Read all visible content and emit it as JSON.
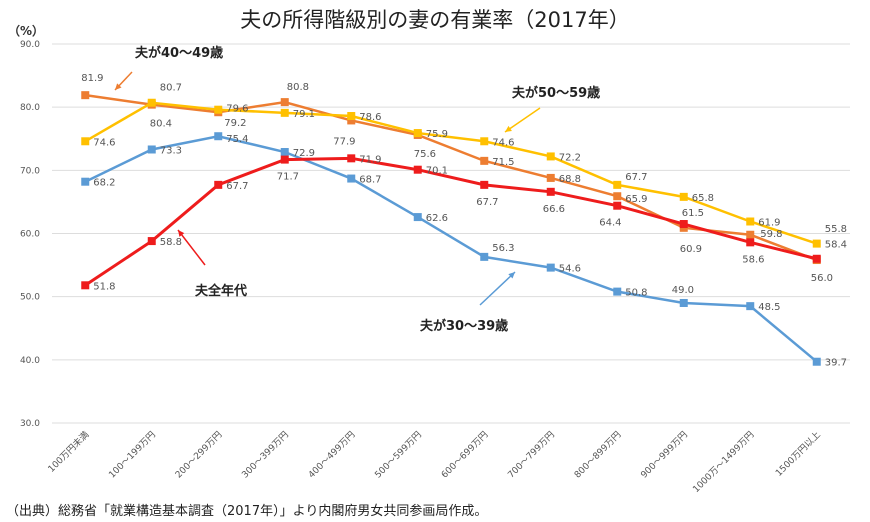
{
  "chart_data": {
    "type": "line",
    "title": "夫の所得階級別の妻の有業率（2017年）",
    "ylabel": "（%）",
    "ylim": [
      30,
      90
    ],
    "yticks": [
      "30.0",
      "40.0",
      "50.0",
      "60.0",
      "70.0",
      "80.0",
      "90.0"
    ],
    "grid": true,
    "categories": [
      "100万円未満",
      "100～199万円",
      "200～299万円",
      "300～399万円",
      "400～499万円",
      "500～599万円",
      "600～699万円",
      "700～799万円",
      "800～899万円",
      "900～999万円",
      "1000万～1499万円",
      "1500万円以上"
    ],
    "series": [
      {
        "name": "夫全年代",
        "color": "#ee1c1c",
        "values": [
          51.8,
          58.8,
          67.7,
          71.7,
          71.9,
          70.1,
          67.7,
          66.6,
          64.4,
          61.5,
          58.6,
          56.0
        ]
      },
      {
        "name": "夫が30～39歳",
        "color": "#5b9bd5",
        "values": [
          68.2,
          73.3,
          75.4,
          72.9,
          68.7,
          62.6,
          56.3,
          54.6,
          50.8,
          49.0,
          48.5,
          39.7
        ]
      },
      {
        "name": "夫が40～49歳",
        "color": "#ed7d31",
        "values": [
          81.9,
          80.4,
          79.2,
          80.8,
          77.9,
          75.6,
          71.5,
          68.8,
          65.9,
          60.9,
          59.8,
          55.8
        ]
      },
      {
        "name": "夫が50～59歳",
        "color": "#ffc000",
        "values": [
          74.6,
          80.7,
          79.6,
          79.1,
          78.6,
          75.9,
          74.6,
          72.2,
          67.7,
          65.8,
          61.9,
          58.4
        ]
      }
    ]
  },
  "source": "（出典）総務省「就業構造基本調査（2017年）」より内閣府男女共同参画局作成。"
}
